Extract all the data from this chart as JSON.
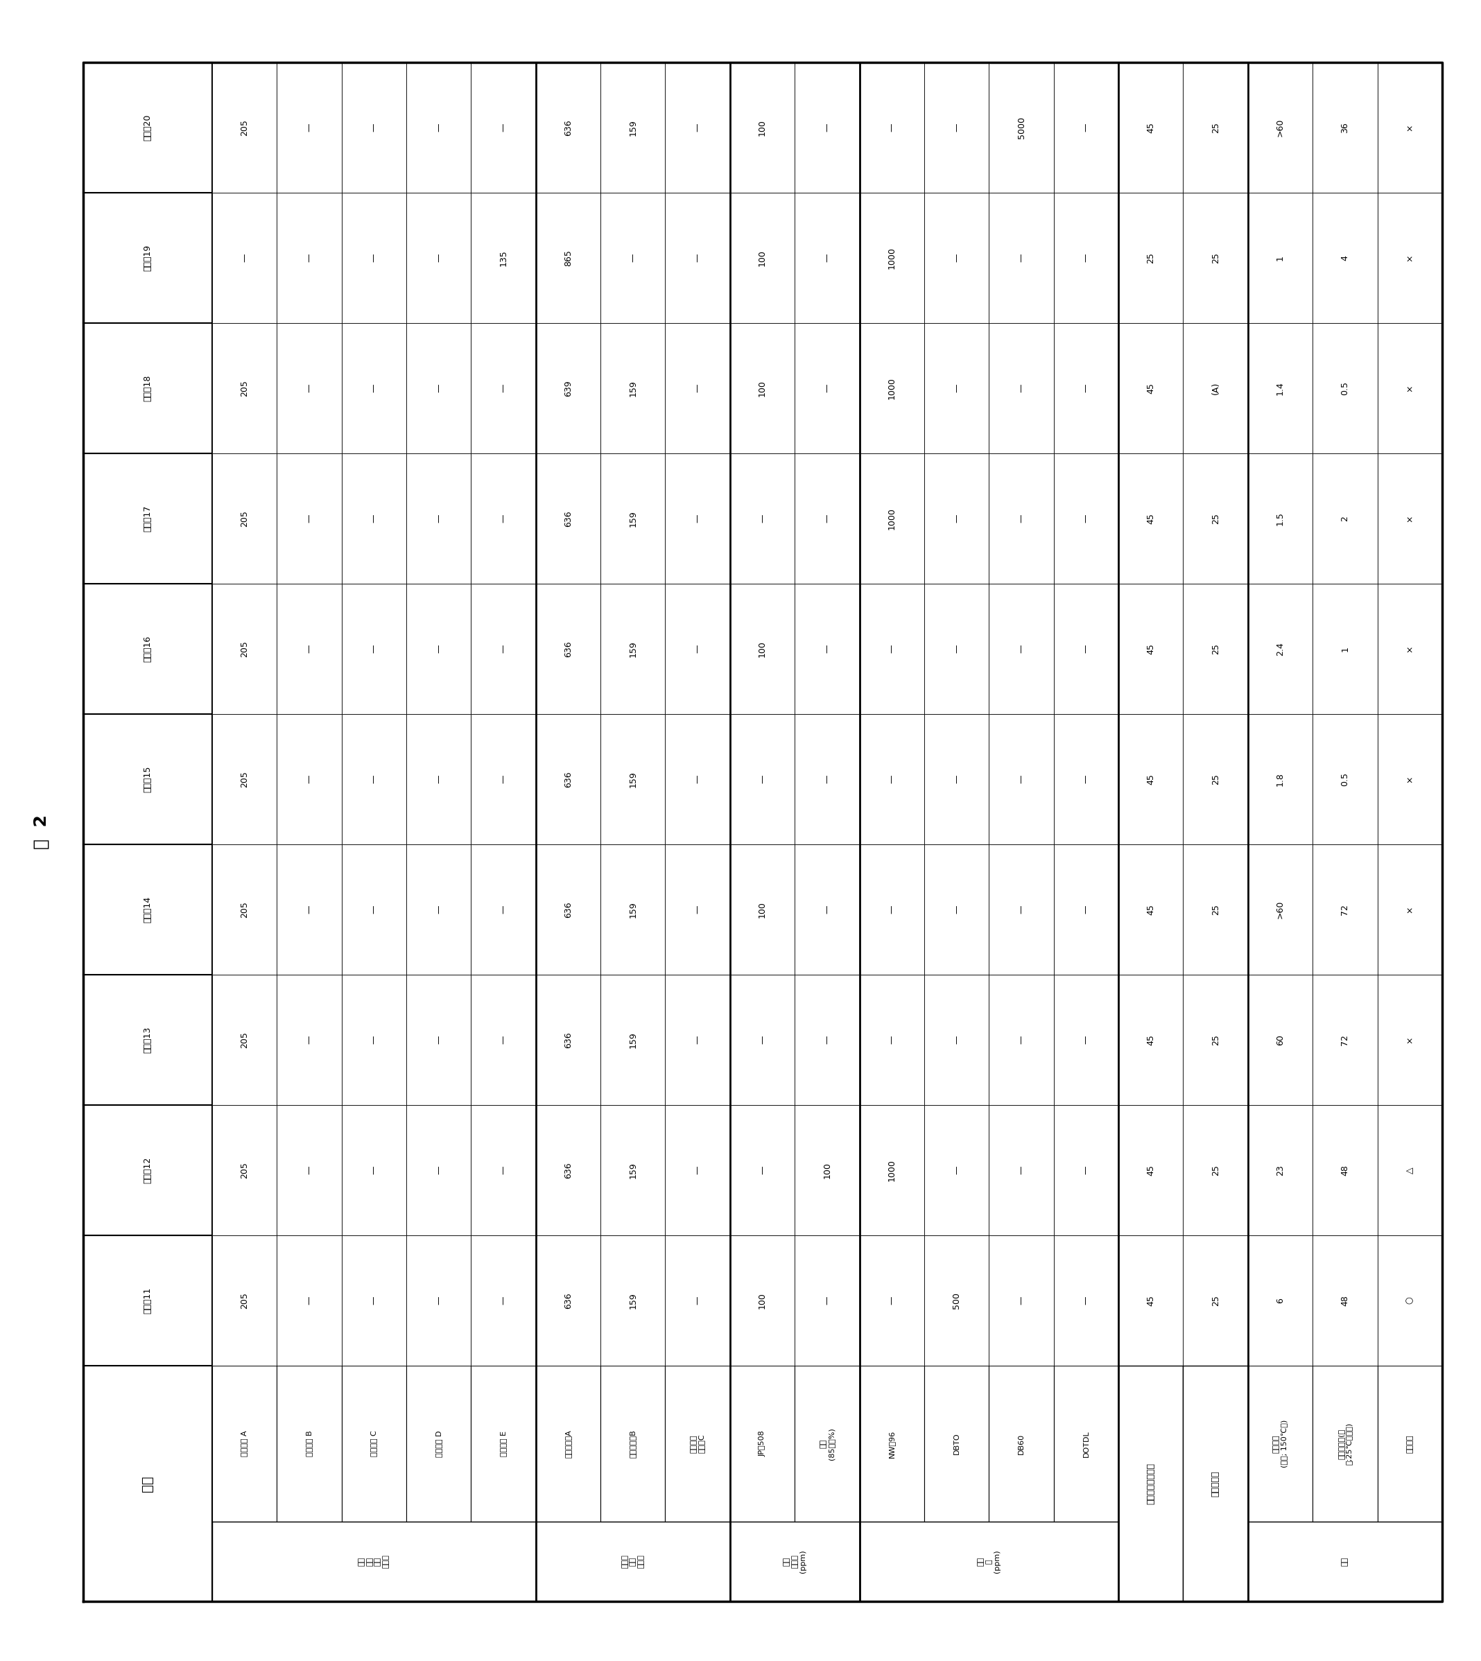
{
  "title": "表 2",
  "col_headers": [
    "实验例11",
    "实验例12",
    "实验例13",
    "实验例14",
    "实验例15",
    "实验例16",
    "实验例17",
    "实验例18",
    "实验例19",
    "实验例20"
  ],
  "rows": [
    {
      "group": "异氰\n酸酯\n成分\n质量份",
      "group_span": 5,
      "sub": "异氰酸酯 A",
      "data": [
        "205",
        "205",
        "205",
        "205",
        "205",
        "205",
        "205",
        "205",
        "—",
        "205"
      ]
    },
    {
      "group": "",
      "group_span": 0,
      "sub": "异氰酸酯 B",
      "data": [
        "—",
        "—",
        "—",
        "—",
        "—",
        "—",
        "—",
        "—",
        "—",
        "—"
      ]
    },
    {
      "group": "",
      "group_span": 0,
      "sub": "异氰酸酯 C",
      "data": [
        "—",
        "—",
        "—",
        "—",
        "—",
        "—",
        "—",
        "—",
        "—",
        "—"
      ]
    },
    {
      "group": "",
      "group_span": 0,
      "sub": "异氰酸酯 D",
      "data": [
        "—",
        "—",
        "—",
        "—",
        "—",
        "—",
        "—",
        "—",
        "—",
        "—"
      ]
    },
    {
      "group": "",
      "group_span": 0,
      "sub": "异氰酸酯 E",
      "data": [
        "—",
        "—",
        "—",
        "—",
        "—",
        "—",
        "—",
        "—",
        "135",
        "—"
      ]
    },
    {
      "group": "多元醇\n成分\n质量份",
      "group_span": 3,
      "sub": "聚酯多元醇A",
      "data": [
        "636",
        "636",
        "636",
        "636",
        "636",
        "636",
        "636",
        "639",
        "865",
        "636"
      ]
    },
    {
      "group": "",
      "group_span": 0,
      "sub": "聚酯多元醇B",
      "data": [
        "159",
        "159",
        "159",
        "159",
        "159",
        "159",
        "159",
        "159",
        "—",
        "159"
      ]
    },
    {
      "group": "",
      "group_span": 0,
      "sub": "聚碳酸酯\n多元醇C",
      "data": [
        "—",
        "—",
        "—",
        "—",
        "—",
        "—",
        "—",
        "—",
        "—",
        "—"
      ]
    },
    {
      "group": "反应\n抑制剂\n(ppm)",
      "group_span": 2,
      "sub": "JP－508",
      "data": [
        "100",
        "—",
        "—",
        "100",
        "—",
        "100",
        "—",
        "100",
        "100",
        "100"
      ]
    },
    {
      "group": "",
      "group_span": 0,
      "sub": "磷酸\n(85质量%)",
      "data": [
        "—",
        "100",
        "—",
        "—",
        "—",
        "—",
        "—",
        "—",
        "—",
        "—"
      ]
    },
    {
      "group": "催化\n剂\n(ppm)",
      "group_span": 4,
      "sub": "NW－96",
      "data": [
        "—",
        "1000",
        "—",
        "—",
        "—",
        "—",
        "1000",
        "1000",
        "1000",
        "—"
      ]
    },
    {
      "group": "",
      "group_span": 0,
      "sub": "DBTO",
      "data": [
        "500",
        "—",
        "—",
        "—",
        "—",
        "—",
        "—",
        "—",
        "—",
        "—"
      ]
    },
    {
      "group": "",
      "group_span": 0,
      "sub": "DB60",
      "data": [
        "—",
        "—",
        "—",
        "—",
        "—",
        "—",
        "—",
        "—",
        "—",
        "5000"
      ]
    },
    {
      "group": "",
      "group_span": 0,
      "sub": "DOTDL",
      "data": [
        "—",
        "—",
        "—",
        "—",
        "—",
        "—",
        "—",
        "—",
        "—",
        "—"
      ]
    },
    {
      "group": "配合异氰酸酯成分",
      "group_span": -1,
      "sub": "",
      "data": [
        "45",
        "45",
        "45",
        "45",
        "45",
        "45",
        "45",
        "45",
        "25",
        "45"
      ]
    },
    {
      "group": "多元醇成分",
      "group_span": -1,
      "sub": "",
      "data": [
        "25",
        "25",
        "25",
        "25",
        "25",
        "25",
        "25",
        "(A)",
        "25",
        "25"
      ]
    },
    {
      "group": "结果",
      "group_span": 3,
      "sub": "固化时间\n(分钟; 150℃下)",
      "data": [
        "6",
        "23",
        "60",
        ">60",
        "1.8",
        "2.4",
        "1.5",
        "1.4",
        "1",
        ">60"
      ]
    },
    {
      "group": "",
      "group_span": 0,
      "sub": "可使用时间(小\n时;25℃气氛下)",
      "data": [
        "48",
        "48",
        "72",
        "72",
        "0.5",
        "1",
        "2",
        "0.5",
        "4",
        "36"
      ]
    },
    {
      "group": "",
      "group_span": 0,
      "sub": "综合评价",
      "data": [
        "○",
        "△",
        "×",
        "×",
        "×",
        "×",
        "×",
        "×",
        "×",
        "×"
      ]
    }
  ],
  "thick_borders_after_rows": [
    4,
    7,
    9,
    13,
    15
  ],
  "thick_col_borders": [
    1
  ]
}
